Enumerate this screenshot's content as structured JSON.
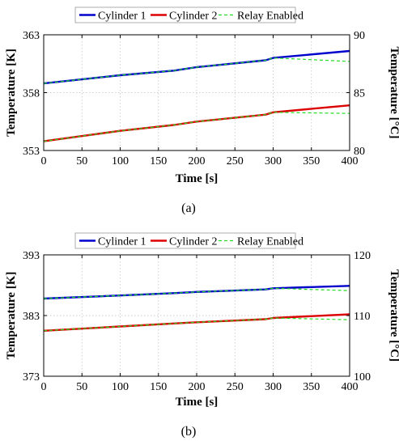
{
  "chart_data": [
    {
      "type": "line",
      "xlabel": "Time [s]",
      "ylabel": "Temperature [K]",
      "ylabel_right": "Temperature [°C]",
      "xlim": [
        0,
        400
      ],
      "ylim": [
        353,
        363
      ],
      "ylim_right": [
        80,
        90
      ],
      "x_ticks": [
        0,
        50,
        100,
        150,
        200,
        250,
        300,
        350,
        400
      ],
      "y_ticks": [
        353,
        358,
        363
      ],
      "y_ticks_right": [
        80,
        85,
        90
      ],
      "grid": true,
      "legend_placement": "top",
      "caption": "(a)",
      "series": [
        {
          "name": "Cylinder 1",
          "color": "#0000cc",
          "style": "solid",
          "x": [
            0,
            100,
            170,
            200,
            290,
            300,
            400
          ],
          "y": [
            358.8,
            359.5,
            359.9,
            360.2,
            360.8,
            361.0,
            361.6
          ]
        },
        {
          "name": "Cylinder 2",
          "color": "#dd0000",
          "style": "solid",
          "x": [
            0,
            100,
            170,
            200,
            290,
            300,
            400
          ],
          "y": [
            353.8,
            354.7,
            355.2,
            355.5,
            356.1,
            356.3,
            356.9
          ]
        },
        {
          "name": "Relay Enabled",
          "color": "#22dd22",
          "style": "dashed",
          "x": [
            0,
            100,
            170,
            200,
            290,
            300,
            400
          ],
          "y": [
            358.8,
            359.5,
            359.9,
            360.2,
            360.8,
            361.0,
            360.7
          ]
        },
        {
          "name": "Relay Enabled",
          "color": "#22dd22",
          "style": "dashed",
          "x": [
            0,
            100,
            170,
            200,
            290,
            300,
            400
          ],
          "y": [
            353.8,
            354.7,
            355.2,
            355.5,
            356.1,
            356.3,
            356.2
          ]
        }
      ]
    },
    {
      "type": "line",
      "xlabel": "Time [s]",
      "ylabel": "Temperature [K]",
      "ylabel_right": "Temperature [°C]",
      "xlim": [
        0,
        400
      ],
      "ylim": [
        373,
        393
      ],
      "ylim_right": [
        100,
        120
      ],
      "x_ticks": [
        0,
        50,
        100,
        150,
        200,
        250,
        300,
        350,
        400
      ],
      "y_ticks": [
        373,
        383,
        393
      ],
      "y_ticks_right": [
        100,
        110,
        120
      ],
      "grid": true,
      "legend_placement": "top",
      "caption": "(b)",
      "series": [
        {
          "name": "Cylinder 1",
          "color": "#0000cc",
          "style": "solid",
          "x": [
            0,
            100,
            170,
            200,
            290,
            300,
            400
          ],
          "y": [
            385.8,
            386.3,
            386.7,
            386.9,
            387.3,
            387.5,
            387.9
          ]
        },
        {
          "name": "Cylinder 2",
          "color": "#dd0000",
          "style": "solid",
          "x": [
            0,
            100,
            170,
            200,
            290,
            300,
            400
          ],
          "y": [
            380.5,
            381.2,
            381.7,
            381.9,
            382.4,
            382.6,
            383.2
          ]
        },
        {
          "name": "Relay Enabled",
          "color": "#22dd22",
          "style": "dashed",
          "x": [
            0,
            100,
            170,
            200,
            290,
            300,
            400
          ],
          "y": [
            385.8,
            386.3,
            386.7,
            386.9,
            387.3,
            387.5,
            387.1
          ]
        },
        {
          "name": "Relay Enabled",
          "color": "#22dd22",
          "style": "dashed",
          "x": [
            0,
            100,
            170,
            200,
            290,
            300,
            400
          ],
          "y": [
            380.5,
            381.2,
            381.7,
            381.9,
            382.4,
            382.6,
            382.3
          ]
        }
      ]
    }
  ]
}
